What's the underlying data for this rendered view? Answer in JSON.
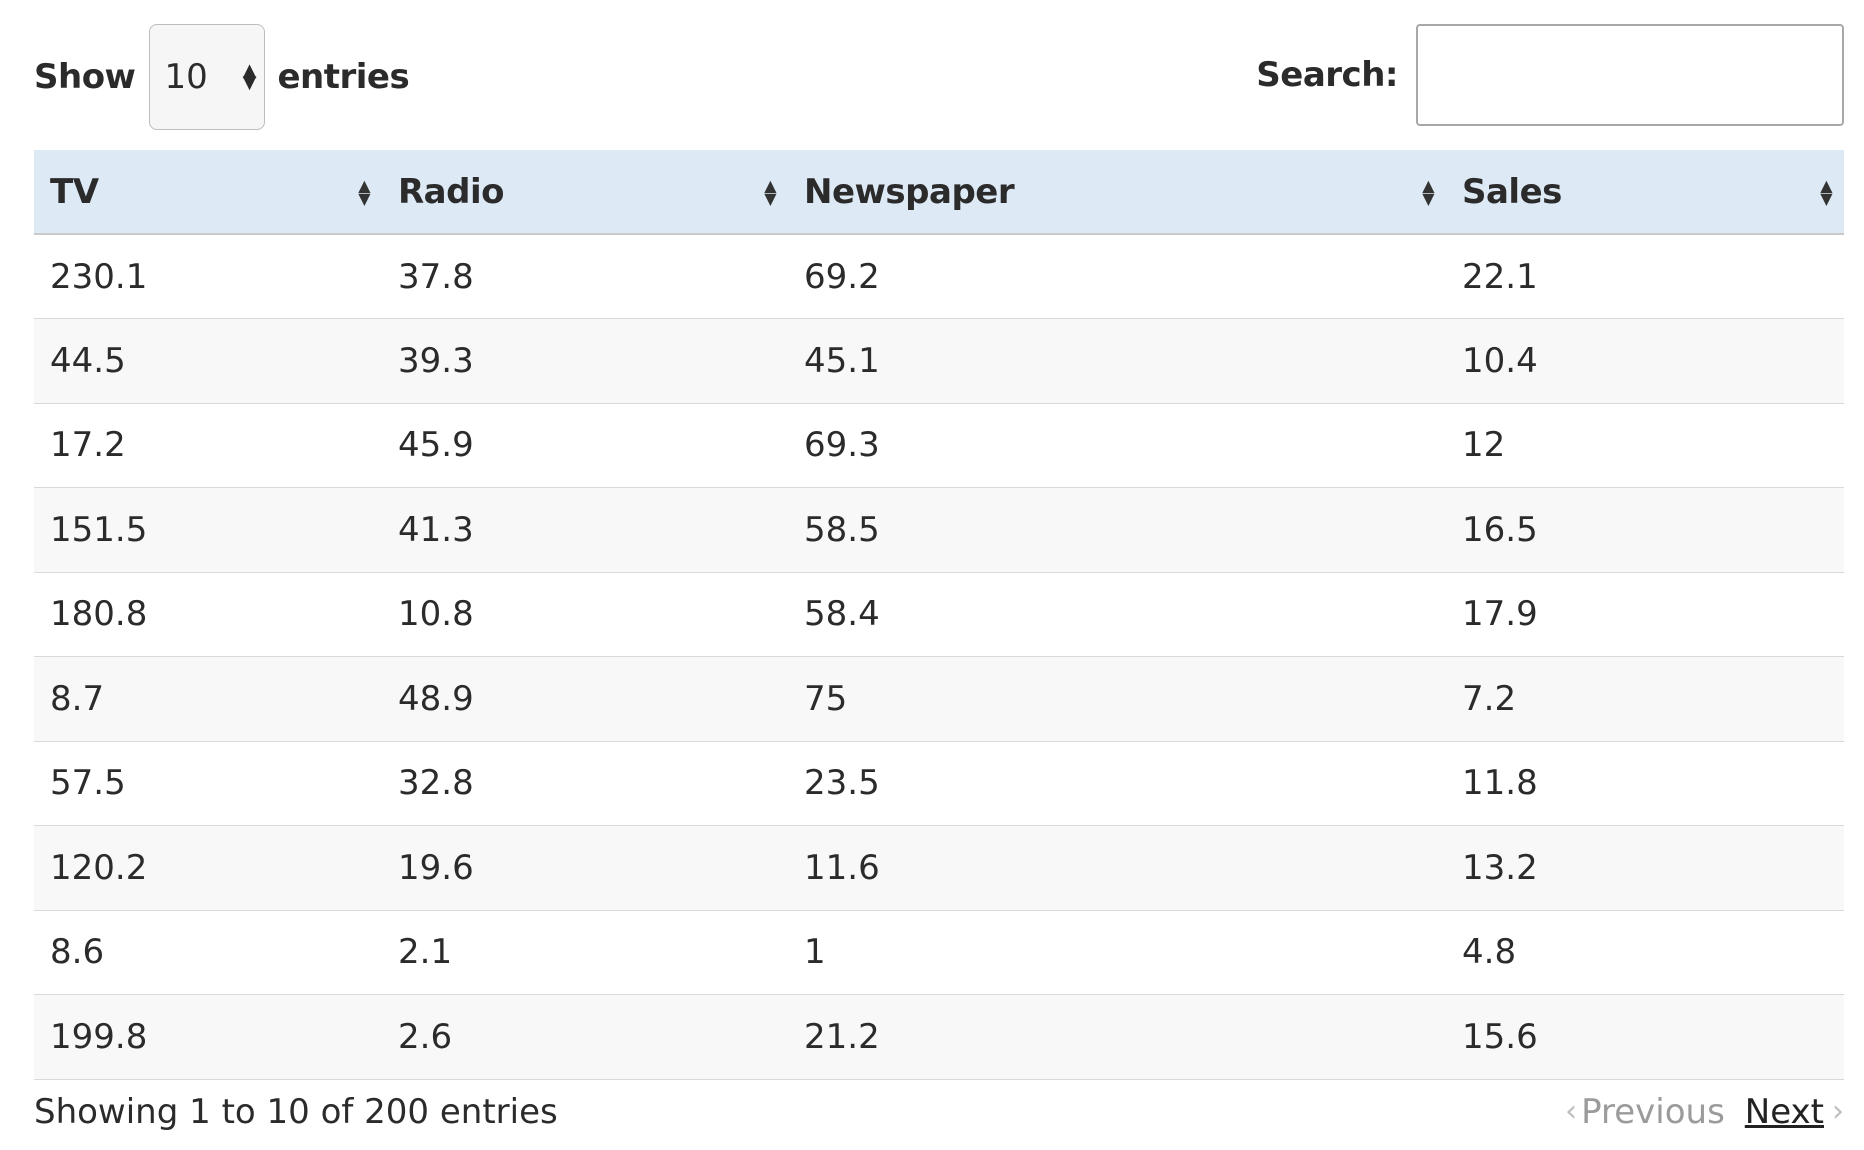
{
  "controls": {
    "show_label": "Show",
    "length_value": "10",
    "entries_label": "entries",
    "search_label": "Search:",
    "search_value": ""
  },
  "table": {
    "headers": [
      "TV",
      "Radio",
      "Newspaper",
      "Sales"
    ],
    "rows": [
      [
        "230.1",
        "37.8",
        "69.2",
        "22.1"
      ],
      [
        "44.5",
        "39.3",
        "45.1",
        "10.4"
      ],
      [
        "17.2",
        "45.9",
        "69.3",
        "12"
      ],
      [
        "151.5",
        "41.3",
        "58.5",
        "16.5"
      ],
      [
        "180.8",
        "10.8",
        "58.4",
        "17.9"
      ],
      [
        "8.7",
        "48.9",
        "75",
        "7.2"
      ],
      [
        "57.5",
        "32.8",
        "23.5",
        "11.8"
      ],
      [
        "120.2",
        "19.6",
        "11.6",
        "13.2"
      ],
      [
        "8.6",
        "2.1",
        "1",
        "4.8"
      ],
      [
        "199.8",
        "2.6",
        "21.2",
        "15.6"
      ]
    ]
  },
  "footer": {
    "info": "Showing 1 to 10 of 200 entries",
    "previous_label": "Previous",
    "next_label": "Next"
  },
  "icons": {
    "sort": "sort-both-icon",
    "select_caret": "select-caret-icon",
    "prev": "chevron-left-icon",
    "next": "chevron-right-icon"
  },
  "colors": {
    "header_bg": "#dde9f4",
    "stripe_bg": "#f8f8f8",
    "disabled_text": "#9b9b9b"
  }
}
